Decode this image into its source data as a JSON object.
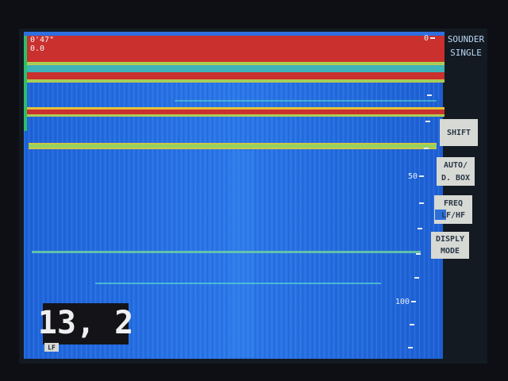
{
  "header": {
    "elapsed": "0'47\"",
    "value": "0.0",
    "mode": [
      "SOUNDER",
      "SINGLE"
    ]
  },
  "depth_scale": [
    "0",
    "50",
    "100"
  ],
  "buttons": [
    {
      "lines": [
        "SHIFT"
      ]
    },
    {
      "lines": [
        "AUTO/",
        "D. BOX"
      ]
    },
    {
      "lines": [
        "FREQ",
        "LF/HF"
      ]
    },
    {
      "lines": [
        "DISPLY",
        "MODE"
      ]
    }
  ],
  "readout": {
    "value": "13, 2",
    "band": "LF"
  }
}
